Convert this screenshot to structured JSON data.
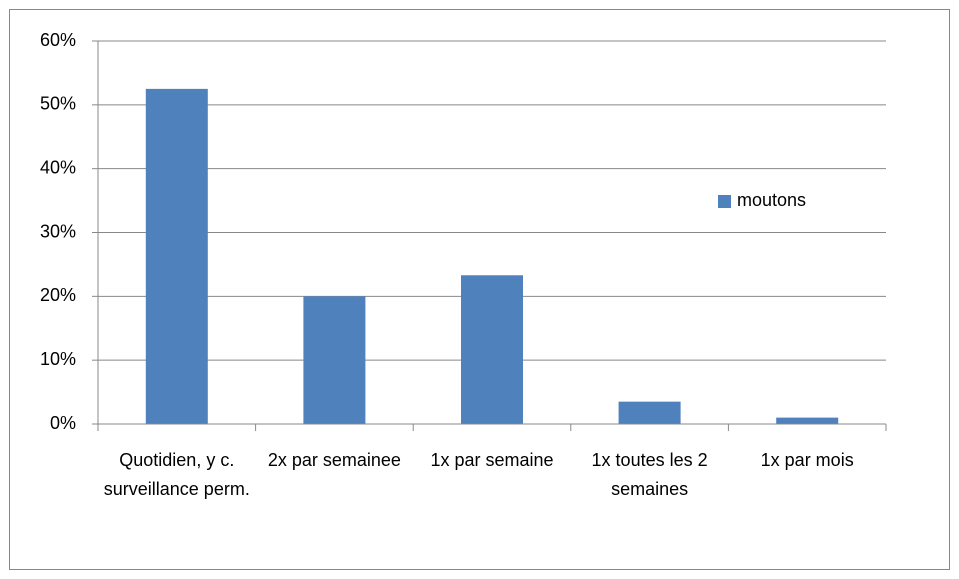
{
  "chart_data": {
    "type": "bar",
    "categories": [
      "Quotidien, y c. surveillance perm.",
      "2x par semainee",
      "1x par semaine",
      "1x toutes les 2 semaines",
      "1x par mois"
    ],
    "series": [
      {
        "name": "moutons",
        "color": "#4f81bd",
        "values": [
          52.5,
          20,
          23.3,
          3.5,
          1
        ]
      }
    ],
    "ylim": [
      0,
      60
    ],
    "yticks": [
      {
        "value": 0,
        "label": "0%"
      },
      {
        "value": 10,
        "label": "10%"
      },
      {
        "value": 20,
        "label": "20%"
      },
      {
        "value": 30,
        "label": "30%"
      },
      {
        "value": 40,
        "label": "40%"
      },
      {
        "value": 50,
        "label": "50%"
      },
      {
        "value": 60,
        "label": "60%"
      }
    ],
    "grid": true,
    "legend": "right"
  }
}
